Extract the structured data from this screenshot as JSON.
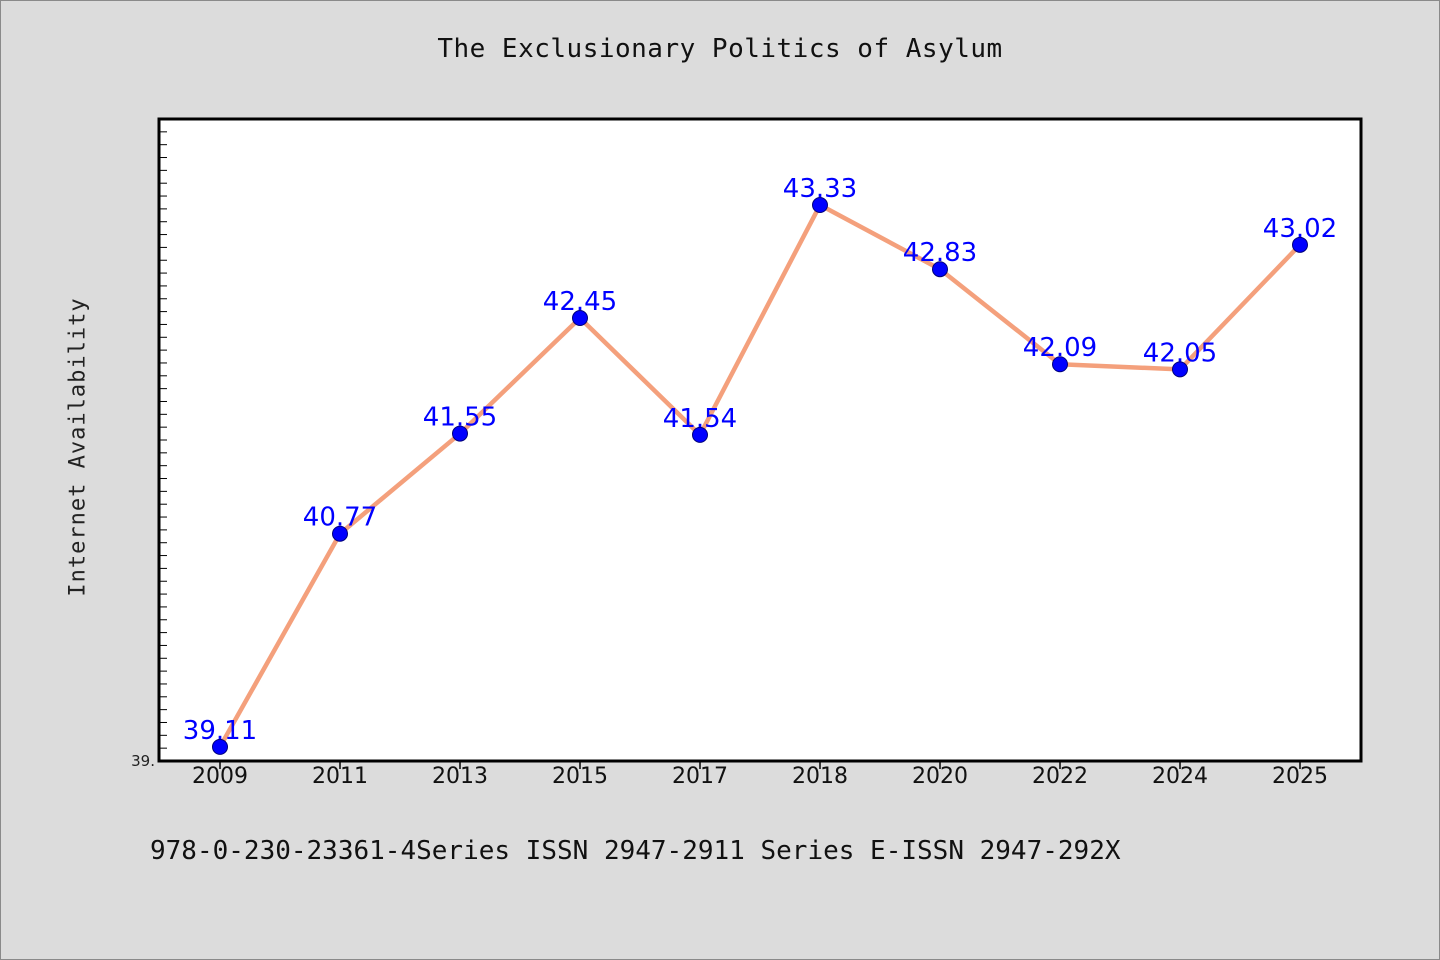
{
  "chart_data": {
    "type": "line",
    "title": "The Exclusionary Politics of Asylum",
    "xlabel": "",
    "ylabel": "Internet Availability",
    "categories": [
      "2009",
      "2011",
      "2013",
      "2015",
      "2017",
      "2018",
      "2020",
      "2022",
      "2024",
      "2025"
    ],
    "series": [
      {
        "values": [
          39.11,
          40.77,
          41.55,
          42.45,
          41.54,
          43.33,
          42.83,
          42.09,
          42.05,
          43.02
        ],
        "data_labels": [
          "39.11",
          "40.77",
          "41.55",
          "42.45",
          "41.54",
          "43.33",
          "42.83",
          "42.09",
          "42.05",
          "43.02"
        ]
      }
    ],
    "y_tick_labels": [
      "39."
    ],
    "ylim": [
      39.0,
      44.0
    ],
    "grid": false,
    "legend": "none",
    "colors": {
      "line": "#f4a07c",
      "marker": "#0000ff",
      "data_label": "#0000ff",
      "plot_background": "#ffffff",
      "page_background": "#dcdcdc"
    }
  },
  "footer": {
    "text": "978-0-230-23361-4Series ISSN 2947-2911 Series E-ISSN 2947-292X"
  }
}
